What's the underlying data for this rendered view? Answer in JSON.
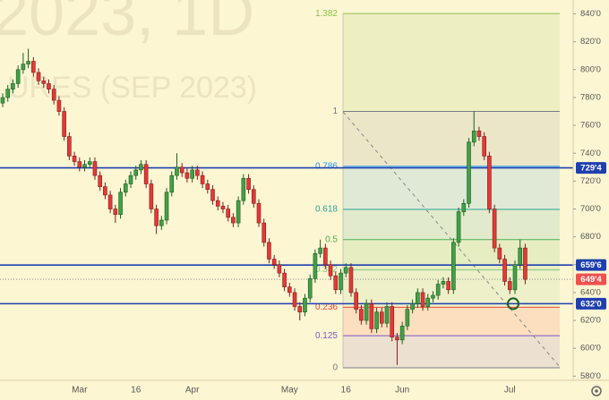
{
  "chart_data": {
    "type": "candlestick",
    "watermark": {
      "line1": "2023, 1D",
      "line2": "URES (SEP 2023)"
    },
    "ylim": [
      577,
      850
    ],
    "yticks": [
      {
        "value": 840,
        "label": "840'0"
      },
      {
        "value": 820,
        "label": "820'0"
      },
      {
        "value": 800,
        "label": "800'0"
      },
      {
        "value": 780,
        "label": "780'0"
      },
      {
        "value": 760,
        "label": "760'0"
      },
      {
        "value": 740,
        "label": "740'0"
      },
      {
        "value": 720,
        "label": "720'0"
      },
      {
        "value": 700,
        "label": "700'0"
      },
      {
        "value": 680,
        "label": "680'0"
      },
      {
        "value": 660,
        "label": "660'0"
      },
      {
        "value": 640,
        "label": "640'0"
      },
      {
        "value": 620,
        "label": "620'0"
      },
      {
        "value": 600,
        "label": "600'0"
      },
      {
        "value": 580,
        "label": "580'0"
      }
    ],
    "categories": [
      null,
      null,
      null,
      null,
      null,
      null,
      null,
      null,
      null,
      null,
      null,
      null,
      null,
      null,
      null,
      "Mar",
      null,
      null,
      null,
      null,
      null,
      null,
      null,
      null,
      null,
      null,
      "16",
      null,
      null,
      null,
      null,
      null,
      null,
      null,
      null,
      null,
      null,
      "Apr",
      null,
      null,
      null,
      null,
      null,
      null,
      null,
      null,
      null,
      null,
      null,
      null,
      null,
      null,
      null,
      null,
      null,
      null,
      "May",
      null,
      null,
      null,
      null,
      null,
      null,
      null,
      null,
      null,
      null,
      "16",
      null,
      null,
      null,
      null,
      null,
      null,
      null,
      null,
      null,
      null,
      "Jun",
      null,
      null,
      null,
      null,
      null,
      null,
      null,
      null,
      null,
      null,
      null,
      null,
      null,
      null,
      null,
      null,
      null,
      null,
      null,
      null,
      "Jul",
      null,
      null,
      null
    ],
    "open": [
      776,
      780,
      786,
      790,
      800,
      804,
      806,
      798,
      792,
      790,
      786,
      778,
      770,
      752,
      738,
      734,
      730,
      732,
      734,
      724,
      716,
      710,
      700,
      696,
      712,
      718,
      724,
      728,
      732,
      718,
      700,
      688,
      692,
      712,
      724,
      730,
      726,
      722,
      728,
      724,
      718,
      714,
      706,
      702,
      700,
      694,
      690,
      706,
      722,
      714,
      704,
      690,
      676,
      664,
      660,
      654,
      644,
      640,
      630,
      626,
      636,
      650,
      668,
      672,
      660,
      652,
      642,
      654,
      658,
      640,
      628,
      620,
      632,
      614,
      626,
      618,
      630,
      608,
      606,
      616,
      628,
      632,
      640,
      630,
      636,
      638,
      646,
      648,
      642,
      676,
      698,
      704,
      748,
      756,
      752,
      738,
      700,
      672,
      664,
      648,
      642,
      660,
      672
    ],
    "high": [
      783,
      789,
      793,
      803,
      812,
      815,
      809,
      801,
      795,
      793,
      789,
      781,
      773,
      755,
      741,
      737,
      735,
      737,
      737,
      727,
      719,
      713,
      703,
      715,
      721,
      727,
      731,
      735,
      735,
      721,
      703,
      695,
      715,
      727,
      740,
      733,
      729,
      731,
      731,
      727,
      721,
      717,
      709,
      705,
      703,
      697,
      709,
      725,
      725,
      717,
      707,
      693,
      679,
      667,
      663,
      657,
      647,
      643,
      633,
      639,
      653,
      671,
      678,
      675,
      663,
      655,
      657,
      661,
      661,
      643,
      631,
      635,
      635,
      629,
      629,
      633,
      633,
      611,
      619,
      631,
      635,
      643,
      643,
      639,
      641,
      649,
      651,
      651,
      679,
      701,
      707,
      751,
      770,
      759,
      755,
      741,
      703,
      675,
      667,
      651,
      663,
      678,
      675
    ],
    "low": [
      773,
      777,
      783,
      787,
      797,
      801,
      795,
      789,
      787,
      783,
      775,
      767,
      749,
      735,
      731,
      727,
      727,
      729,
      721,
      713,
      707,
      697,
      690,
      693,
      709,
      715,
      721,
      725,
      715,
      697,
      682,
      685,
      689,
      709,
      721,
      723,
      719,
      719,
      721,
      715,
      711,
      703,
      699,
      697,
      691,
      687,
      687,
      703,
      711,
      701,
      687,
      673,
      661,
      657,
      651,
      641,
      637,
      627,
      620,
      623,
      633,
      647,
      665,
      657,
      649,
      639,
      639,
      651,
      637,
      625,
      617,
      617,
      611,
      611,
      615,
      615,
      605,
      588,
      603,
      613,
      625,
      629,
      627,
      627,
      633,
      635,
      643,
      639,
      639,
      673,
      695,
      701,
      745,
      749,
      735,
      697,
      669,
      661,
      645,
      639,
      639,
      657,
      646
    ],
    "close": [
      780,
      786,
      790,
      800,
      804,
      806,
      798,
      792,
      790,
      786,
      778,
      770,
      752,
      738,
      734,
      730,
      732,
      734,
      724,
      716,
      710,
      700,
      696,
      712,
      718,
      724,
      728,
      732,
      718,
      700,
      688,
      692,
      712,
      724,
      730,
      726,
      722,
      728,
      724,
      718,
      714,
      706,
      702,
      700,
      694,
      690,
      706,
      722,
      714,
      704,
      690,
      676,
      664,
      660,
      654,
      644,
      640,
      630,
      626,
      636,
      650,
      668,
      672,
      660,
      652,
      642,
      654,
      658,
      640,
      628,
      620,
      632,
      614,
      626,
      618,
      630,
      608,
      606,
      616,
      628,
      632,
      640,
      630,
      636,
      638,
      646,
      648,
      642,
      676,
      698,
      704,
      748,
      756,
      752,
      738,
      700,
      672,
      664,
      648,
      642,
      660,
      672,
      649.5
    ],
    "up_color": "#43a047",
    "down_color": "#e53935",
    "fib": {
      "price_0": 586,
      "price_1": 770,
      "levels": [
        {
          "level": 1.382,
          "color": "#8bc34a"
        },
        {
          "level": 1,
          "color": "#787b86"
        },
        {
          "level": 0.786,
          "color": "#2196f3"
        },
        {
          "level": 0.618,
          "color": "#26a69a"
        },
        {
          "level": 0.5,
          "color": "#4caf50"
        },
        {
          "level": 0.382,
          "color": "#81c784"
        },
        {
          "level": 0.236,
          "color": "#f44336"
        },
        {
          "level": 0.125,
          "color": "#7e57c2"
        },
        {
          "level": 0,
          "color": "#787b86"
        }
      ]
    },
    "price_lines": [
      {
        "value": 729.5,
        "label": "729'4",
        "color": "#1f3fb0"
      },
      {
        "value": 659.75,
        "label": "659'6",
        "color": "#1f3fb0"
      },
      {
        "value": 632,
        "label": "632'0",
        "color": "#1f3fb0"
      }
    ],
    "last_price": {
      "value": 649.5,
      "label": "649'4",
      "color": "#f0514e"
    }
  }
}
